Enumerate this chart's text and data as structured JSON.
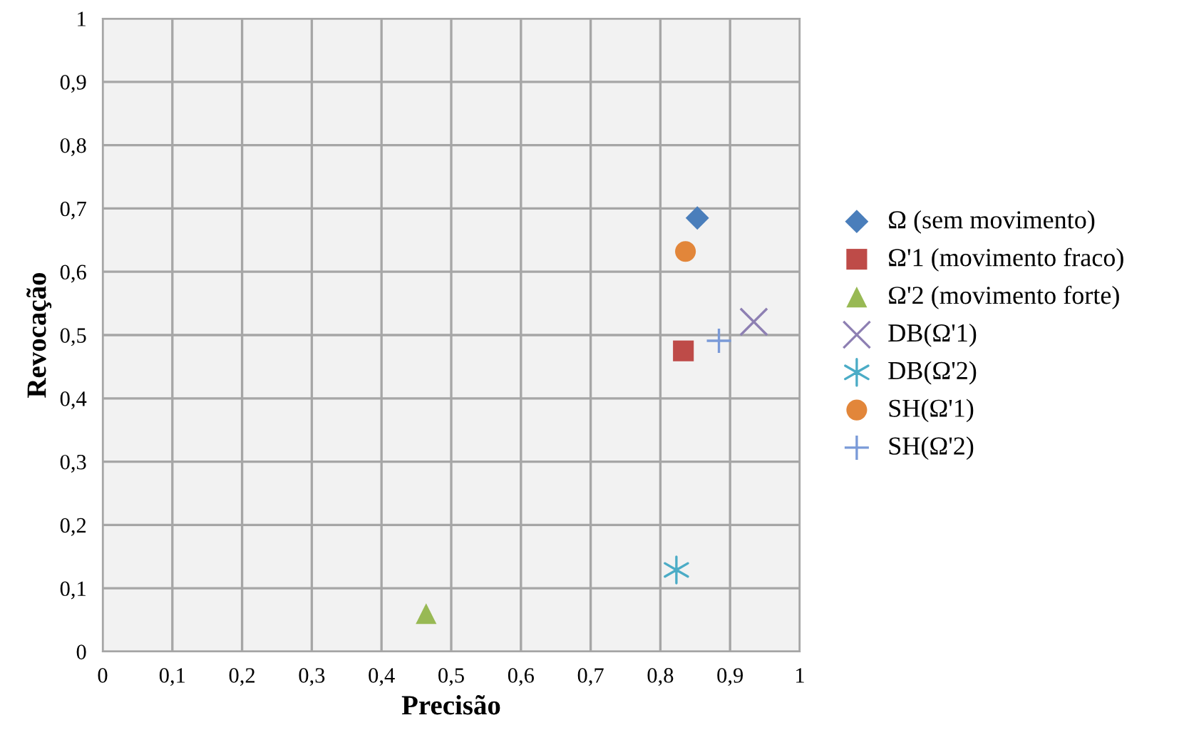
{
  "chart_data": {
    "type": "scatter",
    "xlabel": "Precisão",
    "ylabel": "Revocação",
    "xlim": [
      0,
      1
    ],
    "ylim": [
      0,
      1
    ],
    "xticks": [
      0,
      {
        "value": 0.1,
        "label": "0,1"
      },
      {
        "value": 0.2,
        "label": "0,2"
      },
      {
        "value": 0.3,
        "label": "0,3"
      },
      {
        "value": 0.4,
        "label": "0,4"
      },
      {
        "value": 0.5,
        "label": "0,5"
      },
      {
        "value": 0.6,
        "label": "0,6"
      },
      {
        "value": 0.7,
        "label": "0,7"
      },
      {
        "value": 0.8,
        "label": "0,8"
      },
      {
        "value": 0.9,
        "label": "0,9"
      },
      1
    ],
    "yticks": [
      0,
      {
        "value": 0.1,
        "label": "0,1"
      },
      {
        "value": 0.2,
        "label": "0,2"
      },
      {
        "value": 0.3,
        "label": "0,3"
      },
      {
        "value": 0.4,
        "label": "0,4"
      },
      {
        "value": 0.5,
        "label": "0,5"
      },
      {
        "value": 0.6,
        "label": "0,6"
      },
      {
        "value": 0.7,
        "label": "0,7"
      },
      {
        "value": 0.8,
        "label": "0,8"
      },
      {
        "value": 0.9,
        "label": "0,9"
      },
      1
    ],
    "grid": true,
    "legend": "right",
    "series": [
      {
        "name": "Ω (sem movimento)",
        "color": "#4a7ebb",
        "marker": "diamond",
        "x": [
          0.853
        ],
        "values": [
          0.685
        ]
      },
      {
        "name": "Ω'1 (movimento fraco)",
        "color": "#be4b48",
        "marker": "square",
        "x": [
          0.833
        ],
        "values": [
          0.475
        ]
      },
      {
        "name": "Ω'2 (movimento forte)",
        "color": "#98b954",
        "marker": "triangle",
        "x": [
          0.464
        ],
        "values": [
          0.06
        ]
      },
      {
        "name": "DB(Ω'1)",
        "color": "#8e80b3",
        "marker": "cross",
        "x": [
          0.934
        ],
        "values": [
          0.521
        ]
      },
      {
        "name": "DB(Ω'2)",
        "color": "#4bacc6",
        "x": [
          0.823
        ],
        "values": [
          0.129
        ]
      },
      {
        "name": "SH(Ω'1)",
        "color": "#e2863a",
        "marker": "circle",
        "x": [
          0.836
        ],
        "values": [
          0.632
        ]
      },
      {
        "name": "SH(Ω'2)",
        "color": "#7a9ad8",
        "x": [
          0.884
        ],
        "values": [
          0.491
        ]
      }
    ]
  }
}
